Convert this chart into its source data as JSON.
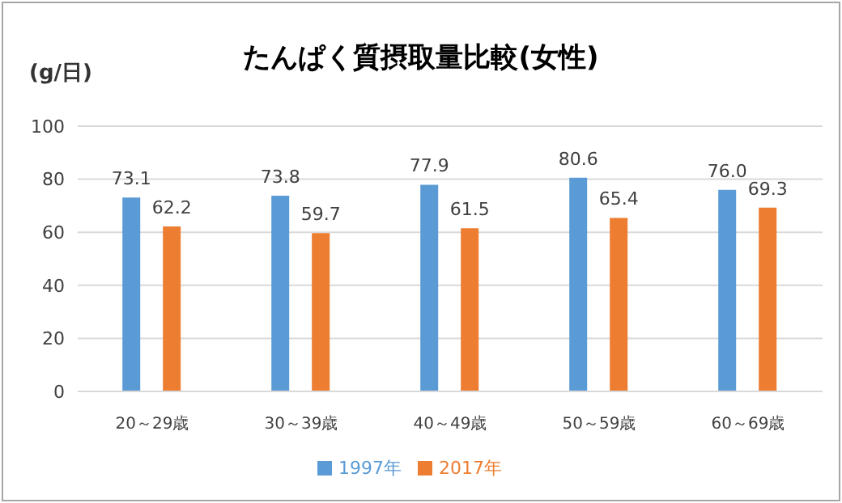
{
  "chart_data": {
    "type": "bar",
    "title": "たんぱく質摂取量比較(女性)",
    "ylabel": "(g/日)",
    "categories": [
      "20～29歳",
      "30～39歳",
      "40～49歳",
      "50～59歳",
      "60～69歳"
    ],
    "series": [
      {
        "name": "1997年",
        "color": "#5b9bd5",
        "values": [
          73.1,
          73.8,
          77.9,
          80.6,
          76.0
        ],
        "value_labels": [
          "73.1",
          "73.8",
          "77.9",
          "80.6",
          "76.0"
        ]
      },
      {
        "name": "2017年",
        "color": "#ed7d31",
        "values": [
          62.2,
          59.7,
          61.5,
          65.4,
          69.3
        ],
        "value_labels": [
          "62.2",
          "59.7",
          "61.5",
          "65.4",
          "69.3"
        ]
      }
    ],
    "ylim": [
      0,
      100
    ],
    "yticks": [
      0,
      20,
      40,
      60,
      80,
      100
    ],
    "grid": "y",
    "legend": "bottom"
  }
}
